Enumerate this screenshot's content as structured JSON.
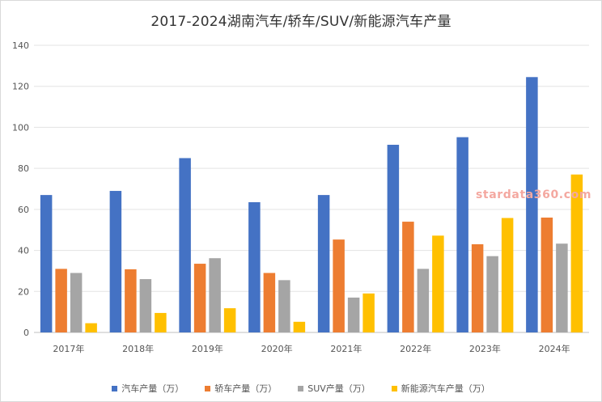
{
  "chart_data": {
    "type": "bar",
    "title": "2017-2024湖南汽车/轿车/SUV/新能源汽车产量",
    "categories": [
      "2017年",
      "2018年",
      "2019年",
      "2020年",
      "2021年",
      "2022年",
      "2023年",
      "2024年"
    ],
    "series": [
      {
        "name": "汽车产量（万）",
        "color": "#4472c4",
        "values": [
          67,
          69,
          85,
          63.5,
          67,
          91.5,
          95.2,
          124.5
        ]
      },
      {
        "name": "轿车产量（万）",
        "color": "#ed7d31",
        "values": [
          31,
          30.8,
          33.5,
          29,
          45.3,
          54,
          43,
          56
        ]
      },
      {
        "name": "SUV产量（万）",
        "color": "#a5a5a5",
        "values": [
          29,
          26,
          36.2,
          25.5,
          17,
          31,
          37.2,
          43.3
        ]
      },
      {
        "name": "新能源汽车产量（万）",
        "color": "#ffc000",
        "values": [
          4.5,
          9.5,
          11.8,
          5.2,
          19,
          47.2,
          55.8,
          77
        ]
      }
    ],
    "y_ticks": [
      "0",
      "20",
      "40",
      "60",
      "80",
      "100",
      "120",
      "140"
    ],
    "ylim": [
      0,
      140
    ],
    "grid": true,
    "legend": "bottom",
    "watermark": "stardata360.com"
  }
}
